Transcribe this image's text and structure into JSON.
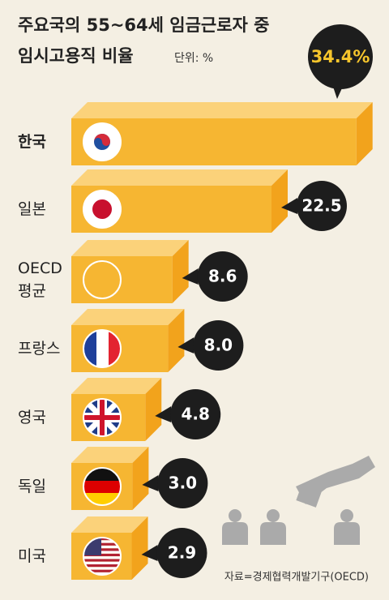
{
  "chart_data": {
    "type": "bar",
    "orientation": "horizontal",
    "title": "주요국의 55~64세 임금근로자 중\n임시고용직 비율",
    "unit_label": "단위: %",
    "categories": [
      "한국",
      "일본",
      "OECD\n평균",
      "프랑스",
      "영국",
      "독일",
      "미국"
    ],
    "values": [
      34.4,
      22.5,
      8.6,
      8.0,
      4.8,
      3.0,
      2.9
    ],
    "value_labels": [
      "34.4%",
      "22.5",
      "8.6",
      "8.0",
      "4.8",
      "3.0",
      "2.9"
    ],
    "color": "#f6b632",
    "source": "자료=경제협력개발기구(OECD)"
  }
}
